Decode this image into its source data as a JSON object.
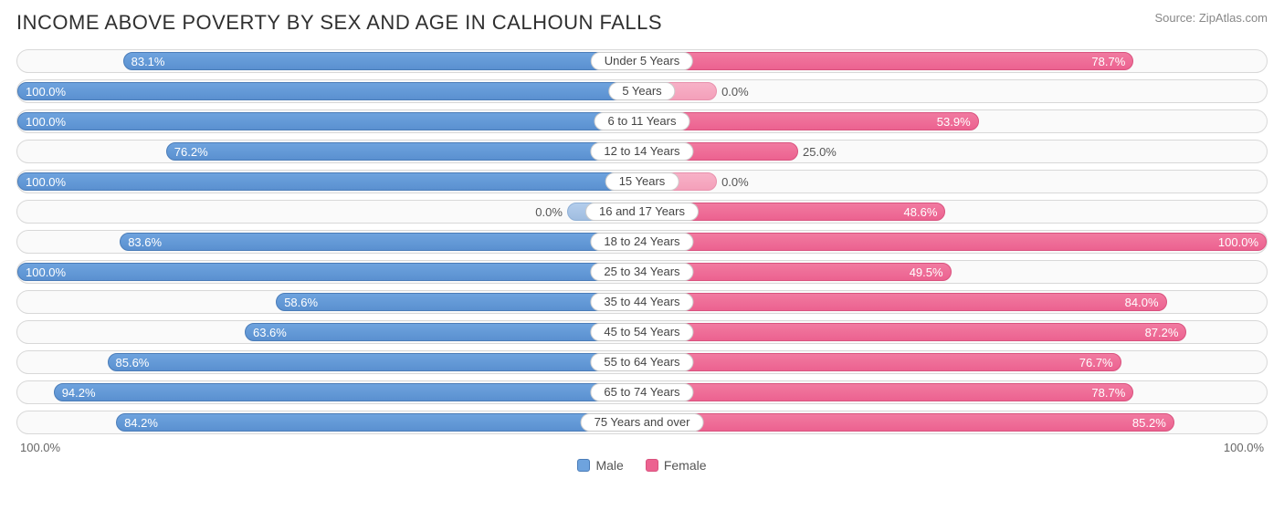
{
  "title": "INCOME ABOVE POVERTY BY SEX AND AGE IN CALHOUN FALLS",
  "source": "Source: ZipAtlas.com",
  "axis": {
    "left": "100.0%",
    "right": "100.0%"
  },
  "legend": {
    "male": "Male",
    "female": "Female"
  },
  "chart": {
    "type": "diverging-bar",
    "male_color": "#6ea3de",
    "male_border": "#4a7cb8",
    "female_color": "#ec6290",
    "female_border": "#d9527e",
    "background": "#fafafa",
    "row_border": "#d8d8d8",
    "label_bg": "#ffffff",
    "label_border": "#cccccc",
    "value_fontsize": 13,
    "category_fontsize": 13,
    "zero_min_width_pct": 12,
    "rows": [
      {
        "category": "Under 5 Years",
        "male": 83.1,
        "male_label": "83.1%",
        "female": 78.7,
        "female_label": "78.7%"
      },
      {
        "category": "5 Years",
        "male": 100.0,
        "male_label": "100.0%",
        "female": 0.0,
        "female_label": "0.0%"
      },
      {
        "category": "6 to 11 Years",
        "male": 100.0,
        "male_label": "100.0%",
        "female": 53.9,
        "female_label": "53.9%"
      },
      {
        "category": "12 to 14 Years",
        "male": 76.2,
        "male_label": "76.2%",
        "female": 25.0,
        "female_label": "25.0%"
      },
      {
        "category": "15 Years",
        "male": 100.0,
        "male_label": "100.0%",
        "female": 0.0,
        "female_label": "0.0%"
      },
      {
        "category": "16 and 17 Years",
        "male": 0.0,
        "male_label": "0.0%",
        "female": 48.6,
        "female_label": "48.6%"
      },
      {
        "category": "18 to 24 Years",
        "male": 83.6,
        "male_label": "83.6%",
        "female": 100.0,
        "female_label": "100.0%"
      },
      {
        "category": "25 to 34 Years",
        "male": 100.0,
        "male_label": "100.0%",
        "female": 49.5,
        "female_label": "49.5%"
      },
      {
        "category": "35 to 44 Years",
        "male": 58.6,
        "male_label": "58.6%",
        "female": 84.0,
        "female_label": "84.0%"
      },
      {
        "category": "45 to 54 Years",
        "male": 63.6,
        "male_label": "63.6%",
        "female": 87.2,
        "female_label": "87.2%"
      },
      {
        "category": "55 to 64 Years",
        "male": 85.6,
        "male_label": "85.6%",
        "female": 76.7,
        "female_label": "76.7%"
      },
      {
        "category": "65 to 74 Years",
        "male": 94.2,
        "male_label": "94.2%",
        "female": 78.7,
        "female_label": "78.7%"
      },
      {
        "category": "75 Years and over",
        "male": 84.2,
        "male_label": "84.2%",
        "female": 85.2,
        "female_label": "85.2%"
      }
    ]
  }
}
